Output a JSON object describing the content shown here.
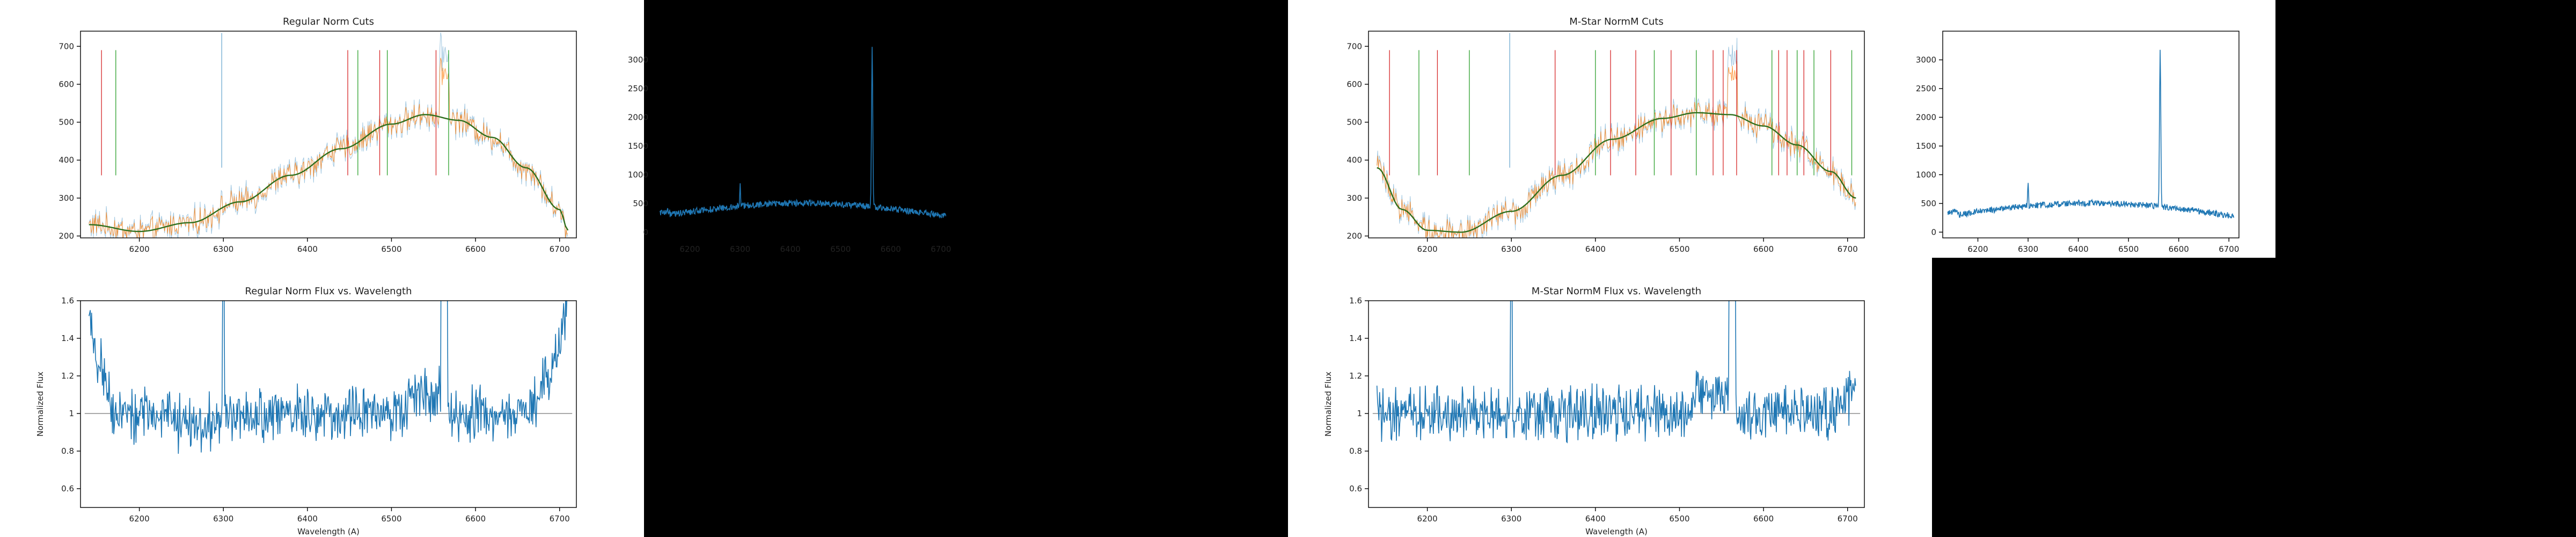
{
  "colors": {
    "spectrum": "#1f77b4",
    "spectrum_light": "#9fc6e0",
    "masked": "#ff7f0e",
    "fit": "#2f6f1e",
    "continuum": "#2ca02c",
    "cut_green": "#2ca02c",
    "cut_red": "#d62728",
    "axis": "#000000",
    "background": "#ffffff"
  },
  "chart_data": [
    {
      "id": "reg-cuts",
      "type": "line",
      "title": "Regular Norm Cuts",
      "xlabel": "",
      "ylabel": "",
      "xlim": [
        6130,
        6720
      ],
      "ylim": [
        195,
        740
      ],
      "xticks": [
        6200,
        6300,
        6400,
        6500,
        6600,
        6700
      ],
      "yticks": [
        200,
        300,
        400,
        500,
        600,
        700
      ],
      "cut_lines": {
        "green": [
          6172,
          6460,
          6495,
          6568
        ],
        "red": [
          6155,
          6448,
          6486,
          6553
        ],
        "light_blue": [
          6298
        ]
      },
      "fit_curve": {
        "x": [
          6140,
          6200,
          6260,
          6320,
          6380,
          6440,
          6500,
          6540,
          6580,
          6620,
          6660,
          6700,
          6710
        ],
        "y": [
          230,
          212,
          235,
          290,
          360,
          430,
          495,
          520,
          505,
          460,
          380,
          270,
          215
        ]
      }
    },
    {
      "id": "reg-full",
      "type": "line",
      "title": "",
      "xlabel": "",
      "ylabel": "",
      "xlim": [
        6130,
        6720
      ],
      "ylim": [
        -100,
        3500
      ],
      "xticks": [
        6200,
        6300,
        6400,
        6500,
        6600,
        6700
      ],
      "yticks": [
        0,
        500,
        1000,
        1500,
        2000,
        2500,
        3000
      ],
      "spike": {
        "x": 6563,
        "y": 3350
      },
      "small_spike": {
        "x": 6300,
        "y": 720
      }
    },
    {
      "id": "reg-norm",
      "type": "line",
      "title": "Regular Norm Flux vs. Wavelength",
      "xlabel": "Wavelength (A)",
      "ylabel": "Normalized Flux",
      "xlim": [
        6130,
        6720
      ],
      "ylim": [
        0.5,
        1.6
      ],
      "xticks": [
        6200,
        6300,
        6400,
        6500,
        6600,
        6700
      ],
      "yticks": [
        0.6,
        0.8,
        1.0,
        1.2,
        1.4,
        1.6
      ],
      "reference": 1.0
    },
    {
      "id": "m-cuts",
      "type": "line",
      "title": "M-Star NormM Cuts",
      "xlabel": "",
      "ylabel": "",
      "xlim": [
        6130,
        6720
      ],
      "ylim": [
        195,
        740
      ],
      "xticks": [
        6200,
        6300,
        6400,
        6500,
        6600,
        6700
      ],
      "yticks": [
        200,
        300,
        400,
        500,
        600,
        700
      ],
      "cut_lines": {
        "green": [
          6190,
          6250,
          6400,
          6470,
          6520,
          6610,
          6640,
          6660,
          6705
        ],
        "red": [
          6155,
          6212,
          6352,
          6418,
          6448,
          6490,
          6540,
          6552,
          6568,
          6618,
          6628,
          6648,
          6680
        ],
        "light_blue": [
          6298
        ]
      },
      "fit_curve": {
        "x": [
          6140,
          6170,
          6200,
          6240,
          6300,
          6360,
          6420,
          6480,
          6520,
          6560,
          6600,
          6640,
          6680,
          6710
        ],
        "y": [
          380,
          270,
          215,
          210,
          265,
          360,
          455,
          510,
          525,
          520,
          490,
          440,
          370,
          300
        ]
      }
    },
    {
      "id": "m-full",
      "type": "line",
      "title": "",
      "xlabel": "",
      "ylabel": "",
      "xlim": [
        6130,
        6720
      ],
      "ylim": [
        -100,
        3500
      ],
      "xticks": [
        6200,
        6300,
        6400,
        6500,
        6600,
        6700
      ],
      "yticks": [
        0,
        500,
        1000,
        1500,
        2000,
        2500,
        3000
      ],
      "spike": {
        "x": 6563,
        "y": 3350
      },
      "small_spike": {
        "x": 6300,
        "y": 720
      }
    },
    {
      "id": "m-norm",
      "type": "line",
      "title": "M-Star NormM Flux vs. Wavelength",
      "xlabel": "Wavelength (A)",
      "ylabel": "Normalized Flux",
      "xlim": [
        6130,
        6720
      ],
      "ylim": [
        0.5,
        1.6
      ],
      "xticks": [
        6200,
        6300,
        6400,
        6500,
        6600,
        6700
      ],
      "yticks": [
        0.6,
        0.8,
        1.0,
        1.2,
        1.4,
        1.6
      ],
      "reference": 1.0
    }
  ]
}
